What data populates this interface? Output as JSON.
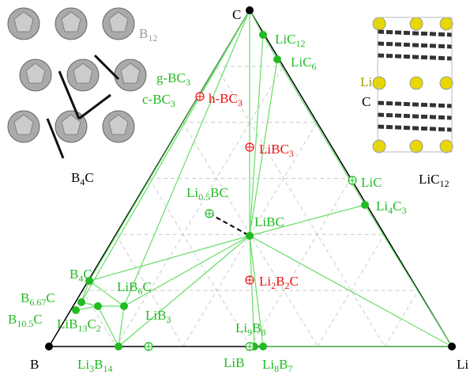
{
  "vertices": {
    "top": "C",
    "left": "B",
    "right": "Li"
  },
  "phases": [
    {
      "label": [
        "LiC",
        "12"
      ],
      "color": "#22bb22",
      "marker": "filled"
    },
    {
      "label": [
        "LiC",
        "6"
      ],
      "color": "#22bb22",
      "marker": "filled"
    },
    {
      "label": [
        "LiC"
      ],
      "color": "#22bb22",
      "marker": "open"
    },
    {
      "label": [
        "Li",
        "4",
        "C",
        "3"
      ],
      "color": "#22bb22",
      "marker": "filled"
    },
    {
      "label": [
        "LiBC"
      ],
      "color": "#22bb22",
      "marker": "filled"
    },
    {
      "label": [
        "Li",
        "0.5",
        "BC"
      ],
      "color": "#22bb22",
      "marker": "open"
    },
    {
      "label": [
        "B",
        "4",
        "C"
      ],
      "color": "#22bb22",
      "marker": "filled"
    },
    {
      "label": [
        "LiB",
        "6",
        "C"
      ],
      "color": "#22bb22",
      "marker": "filled"
    },
    {
      "label": [
        "B",
        "6.67",
        "C"
      ],
      "color": "#22bb22",
      "marker": "filled"
    },
    {
      "label": [
        "B",
        "10.5",
        "C"
      ],
      "color": "#22bb22",
      "marker": "filled"
    },
    {
      "label": [
        "LiB",
        "13",
        "C",
        "2"
      ],
      "color": "#22bb22",
      "marker": "filled"
    },
    {
      "label": [
        "LiB",
        "3"
      ],
      "color": "#22bb22",
      "marker": "open"
    },
    {
      "label": [
        "Li",
        "3",
        "B",
        "14"
      ],
      "color": "#22bb22",
      "marker": "filled"
    },
    {
      "label": [
        "Li",
        "9",
        "B",
        "8"
      ],
      "color": "#22bb22",
      "marker": "filled"
    },
    {
      "label": [
        "LiB"
      ],
      "color": "#22bb22",
      "marker": "open"
    },
    {
      "label": [
        "Li",
        "8",
        "B",
        "7"
      ],
      "color": "#22bb22",
      "marker": "filled"
    },
    {
      "label": [
        "g-BC",
        "3"
      ],
      "color": "#22bb22"
    },
    {
      "label": [
        "c-BC",
        "3"
      ],
      "color": "#22bb22"
    },
    {
      "label": [
        "h-BC",
        "3"
      ],
      "color": "#ee1111",
      "marker": "open"
    },
    {
      "label": [
        "LiBC",
        "3"
      ],
      "color": "#ee1111",
      "marker": "open"
    },
    {
      "label": [
        "Li",
        "2",
        "B",
        "2",
        "C"
      ],
      "color": "#ee1111",
      "marker": "open"
    }
  ],
  "insets": {
    "left": {
      "atom_label": [
        "B",
        "12"
      ],
      "caption": [
        "B",
        "4",
        "C"
      ]
    },
    "right": {
      "atom_labels": [
        "Li",
        "C"
      ],
      "caption": [
        "LiC",
        "12"
      ]
    }
  }
}
